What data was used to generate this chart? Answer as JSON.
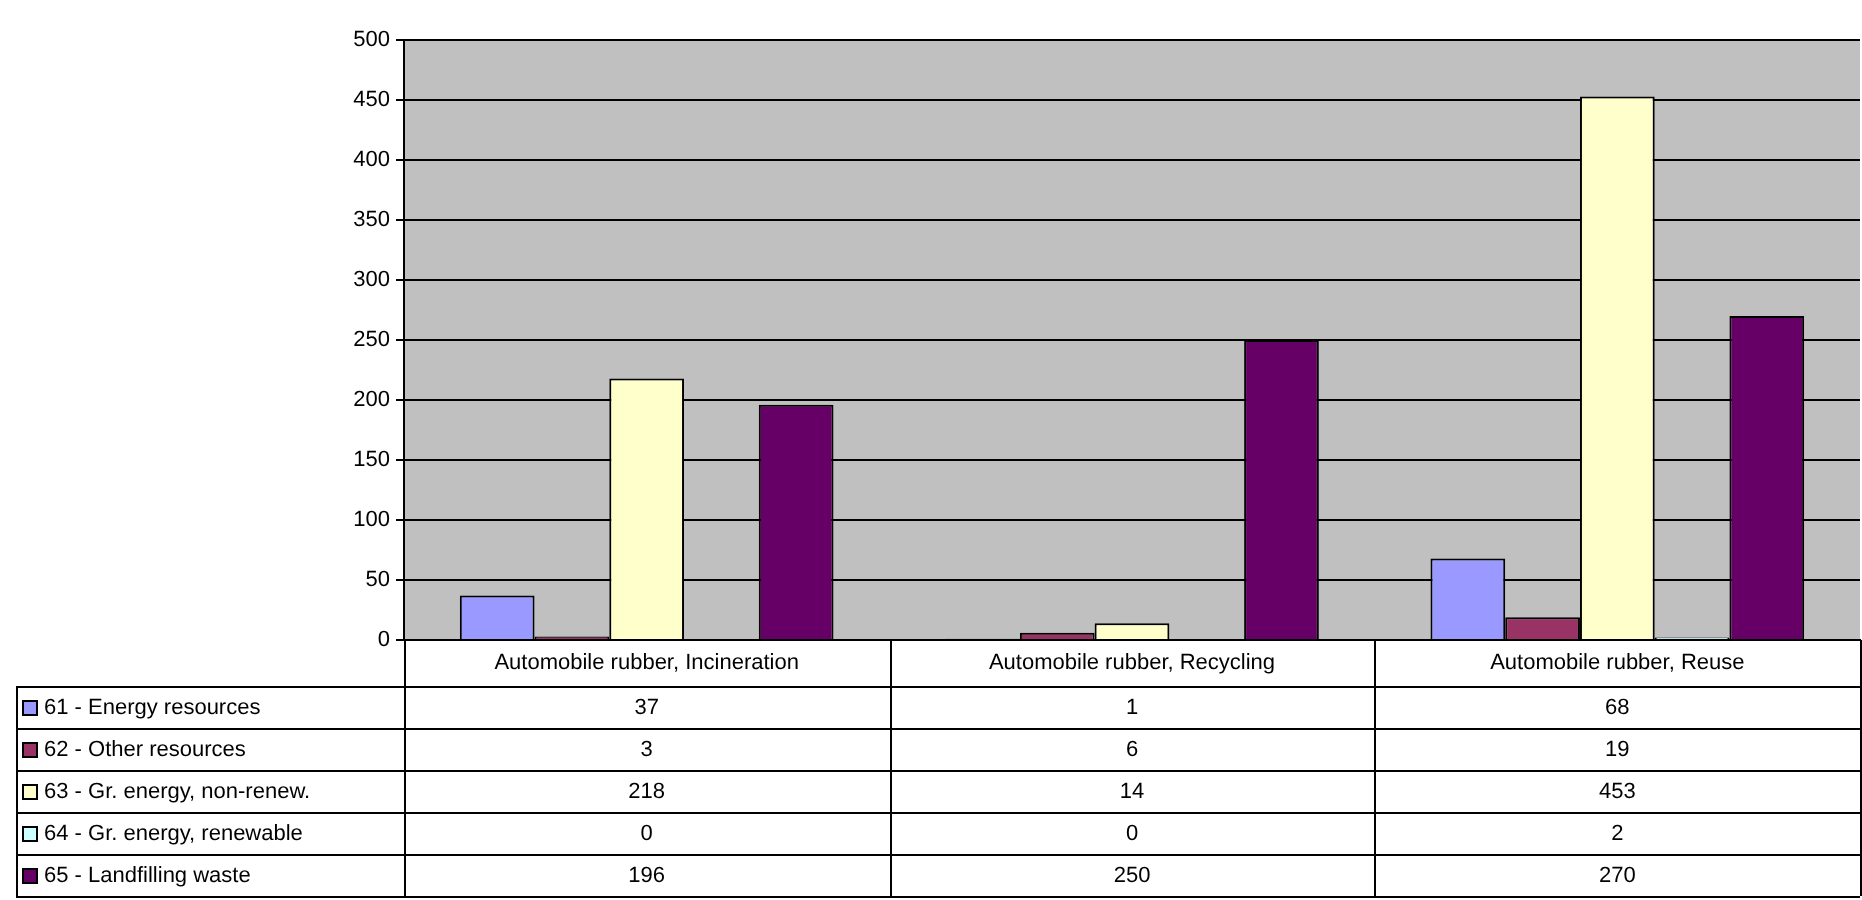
{
  "chart_data": {
    "type": "bar",
    "categories": [
      "Automobile rubber, Incineration",
      "Automobile rubber, Recycling",
      "Automobile rubber, Reuse"
    ],
    "series": [
      {
        "name": "61 - Energy resources",
        "color": "#9999ff",
        "values": [
          37,
          1,
          68
        ]
      },
      {
        "name": "62 - Other resources",
        "color": "#993366",
        "values": [
          3,
          6,
          19
        ]
      },
      {
        "name": "63 - Gr. energy, non-renew.",
        "color": "#ffffcc",
        "values": [
          218,
          14,
          453
        ]
      },
      {
        "name": "64 - Gr. energy, renewable",
        "color": "#ccffff",
        "values": [
          0,
          0,
          2
        ]
      },
      {
        "name": "65 - Landfilling waste",
        "color": "#660066",
        "values": [
          196,
          250,
          270
        ]
      }
    ],
    "ylim": [
      0,
      500
    ],
    "yticks": [
      0,
      50,
      100,
      150,
      200,
      250,
      300,
      350,
      400,
      450,
      500
    ],
    "grid": "y",
    "legend": "bottom",
    "data_labels": true
  }
}
